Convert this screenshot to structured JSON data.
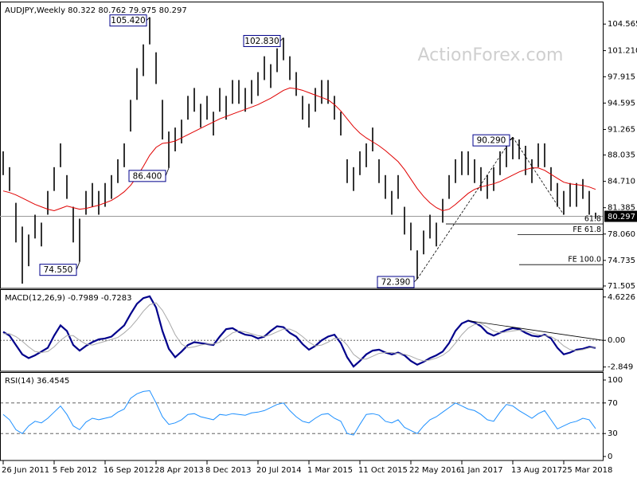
{
  "chart_data": [
    {
      "type": "ohlc",
      "title": "AUDJPY,Weekly  80.322 80.762 79.975 80.297",
      "watermark": "ActionForex.com",
      "color": "#000000",
      "categories": [
        "26 Jun 2011",
        null,
        null,
        null,
        null,
        null,
        null,
        null,
        "5 Feb 2012",
        null,
        null,
        null,
        null,
        null,
        null,
        null,
        "16 Sep 2012",
        null,
        null,
        null,
        null,
        null,
        null,
        null,
        "28 Apr 2013",
        null,
        null,
        null,
        null,
        null,
        null,
        null,
        "8 Dec 2013",
        null,
        null,
        null,
        null,
        null,
        null,
        null,
        "20 Jul 2014",
        null,
        null,
        null,
        null,
        null,
        null,
        null,
        "1 Mar 2015",
        null,
        null,
        null,
        null,
        null,
        null,
        null,
        "11 Oct 2015",
        null,
        null,
        null,
        null,
        null,
        null,
        null,
        "22 May 2016",
        null,
        null,
        null,
        null,
        null,
        null,
        null,
        "1 Jan 2017",
        null,
        null,
        null,
        null,
        null,
        null,
        null,
        "13 Aug 2017",
        null,
        null,
        null,
        null,
        null,
        null,
        null,
        "25 Mar 2018",
        null,
        null,
        null,
        null,
        null
      ],
      "high": [
        88.5,
        86.5,
        82,
        79,
        78,
        80.5,
        79.5,
        83.5,
        86.5,
        89.5,
        85.5,
        81.5,
        80,
        83.5,
        84.5,
        83.5,
        84.5,
        85.5,
        87.5,
        89.5,
        95,
        99,
        102,
        105.42,
        101,
        95,
        91,
        91.5,
        92.5,
        95.5,
        96.5,
        94.5,
        95.5,
        93.5,
        96.5,
        95.5,
        97.5,
        97.5,
        96.5,
        97.5,
        98.5,
        100.5,
        99.5,
        101.5,
        102.83,
        100.5,
        98.5,
        95.5,
        94.5,
        96.5,
        97.5,
        97.5,
        95.5,
        93.5,
        87.5,
        86.5,
        88.5,
        89.5,
        91.5,
        87.5,
        85.5,
        83.5,
        85.5,
        81.5,
        79.5,
        76,
        78.5,
        80.5,
        79.5,
        82.5,
        85.5,
        87.5,
        88.5,
        88.5,
        87.5,
        86.5,
        85.5,
        86.5,
        88.5,
        89.5,
        90.29,
        90,
        89.2,
        87.5,
        89.5,
        89.5,
        86.5,
        84.5,
        83.5,
        84.5,
        84.5,
        85,
        83.5,
        80.762
      ],
      "low": [
        85.5,
        83.5,
        77,
        71.8,
        74,
        77.5,
        76.5,
        80.5,
        83.5,
        86.5,
        82.5,
        77,
        74.55,
        80.5,
        81.5,
        80.5,
        81.5,
        82.5,
        84.5,
        86.5,
        91,
        95,
        98,
        102,
        97,
        90,
        86.4,
        88.5,
        89.5,
        92.5,
        93.5,
        91.5,
        92.5,
        90.5,
        93.5,
        92.5,
        94.5,
        94.5,
        93.5,
        94.5,
        95.5,
        97.5,
        96.5,
        98.5,
        100,
        97.5,
        95.5,
        92.5,
        91.5,
        93.5,
        94.5,
        94.5,
        92.5,
        90.5,
        84.5,
        83.5,
        85.5,
        86.5,
        88.5,
        84.5,
        82.5,
        80.5,
        82.5,
        78,
        76,
        72.39,
        75.5,
        77.5,
        76.5,
        79.5,
        82.5,
        84.5,
        85.5,
        85.5,
        84.5,
        83.5,
        82.5,
        83.5,
        85.5,
        86.5,
        87.5,
        87.5,
        85.5,
        84.5,
        86.5,
        86.5,
        83.5,
        81.5,
        80.5,
        81.5,
        81.5,
        82.5,
        80.5,
        79.975
      ],
      "ma": {
        "color": "#e00000",
        "values": [
          83.5,
          83.3,
          83,
          82.6,
          82.2,
          81.8,
          81.5,
          81.2,
          81,
          81.3,
          81.6,
          81.4,
          81.2,
          81.3,
          81.5,
          81.7,
          82,
          82.3,
          82.8,
          83.4,
          84.2,
          85.3,
          86.6,
          88,
          89,
          89.5,
          89.6,
          89.8,
          90.2,
          90.6,
          91,
          91.4,
          91.8,
          92.2,
          92.6,
          92.9,
          93.2,
          93.5,
          93.8,
          94.1,
          94.4,
          94.8,
          95.2,
          95.7,
          96.2,
          96.5,
          96.4,
          96.2,
          95.9,
          95.6,
          95.3,
          95,
          94.4,
          93.6,
          92.6,
          91.6,
          90.8,
          90.2,
          89.7,
          89.2,
          88.6,
          87.9,
          87.2,
          86.2,
          85,
          83.8,
          82.8,
          82,
          81.4,
          81,
          81.2,
          81.8,
          82.5,
          83.2,
          83.7,
          84,
          84.2,
          84.4,
          84.7,
          85.1,
          85.5,
          85.9,
          86.2,
          86.4,
          86.4,
          86.1,
          85.6,
          85.1,
          84.6,
          84.4,
          84.3,
          84.2,
          84,
          83.7
        ]
      },
      "last_price": 80.297,
      "annotations": [
        {
          "value": 105.42,
          "label": "105.420"
        },
        {
          "value": 102.83,
          "label": "102.830"
        },
        {
          "value": 86.4,
          "label": "86.400"
        },
        {
          "value": 74.55,
          "label": "74.550"
        },
        {
          "value": 72.39,
          "label": "72.390"
        },
        {
          "value": 90.29,
          "label": "90.290"
        }
      ],
      "levels": [
        {
          "value": 79.34,
          "label": "61.8"
        },
        {
          "value": 78.0,
          "label": "FE 61.8"
        },
        {
          "value": 74.2,
          "label": "FE 100.0"
        }
      ],
      "ylim": [
        71.2,
        107.1
      ],
      "yticks": [
        104.565,
        {
          "value": 101.21,
          "label": "101.210"
        },
        97.915,
        94.595,
        91.265,
        88.035,
        {
          "value": 84.71,
          "label": "84.710"
        },
        81.385,
        {
          "value": 78.06,
          "label": "78.060"
        },
        74.735,
        71.505
      ]
    },
    {
      "type": "line",
      "title": "MACD(12,26,9) -0.7989 -0.7283",
      "series": [
        {
          "color": "#00008b",
          "width": 2.2,
          "values": [
            0.9,
            0.5,
            -0.5,
            -1.5,
            -1.9,
            -1.6,
            -1.2,
            -0.8,
            0.5,
            1.6,
            1.0,
            -0.5,
            -1.1,
            -0.6,
            -0.2,
            0.1,
            0.2,
            0.4,
            1.0,
            1.6,
            2.8,
            3.9,
            4.5,
            4.7,
            3.5,
            1.0,
            -0.9,
            -1.8,
            -1.2,
            -0.5,
            -0.2,
            -0.3,
            -0.4,
            -0.5,
            0.4,
            1.2,
            1.3,
            0.9,
            0.6,
            0.5,
            0.2,
            0.4,
            1.0,
            1.5,
            1.4,
            0.8,
            0.4,
            -0.4,
            -1.0,
            -0.6,
            0.0,
            0.4,
            0.6,
            -0.3,
            -1.8,
            -2.8,
            -2.2,
            -1.5,
            -1.1,
            -1.0,
            -1.3,
            -1.5,
            -1.3,
            -1.6,
            -2.2,
            -2.6,
            -2.3,
            -1.9,
            -1.6,
            -1.2,
            -0.3,
            1.0,
            1.8,
            2.1,
            1.9,
            1.5,
            0.8,
            0.5,
            0.8,
            1.1,
            1.3,
            1.2,
            0.8,
            0.5,
            0.4,
            0.6,
            0.2,
            -0.8,
            -1.5,
            -1.3,
            -1.0,
            -0.9,
            -0.7,
            -0.7989
          ]
        },
        {
          "color": "#a9a9a9",
          "width": 1,
          "values": [
            0.7,
            0.7,
            0.4,
            -0.1,
            -0.7,
            -1.2,
            -1.3,
            -1.2,
            -0.7,
            0.0,
            0.5,
            0.5,
            0.0,
            -0.4,
            -0.5,
            -0.3,
            -0.1,
            0.1,
            0.3,
            0.8,
            1.4,
            2.2,
            3.1,
            3.8,
            4.0,
            3.2,
            2.0,
            0.6,
            -0.4,
            -0.8,
            -0.7,
            -0.5,
            -0.4,
            -0.4,
            -0.2,
            0.3,
            0.8,
            1.0,
            0.9,
            0.7,
            0.5,
            0.4,
            0.6,
            0.9,
            1.2,
            1.2,
            0.9,
            0.4,
            -0.2,
            -0.6,
            -0.5,
            -0.2,
            0.2,
            0.2,
            -0.5,
            -1.5,
            -2.0,
            -2.0,
            -1.7,
            -1.4,
            -1.3,
            -1.3,
            -1.4,
            -1.5,
            -1.7,
            -2.0,
            -2.2,
            -2.1,
            -1.9,
            -1.6,
            -1.1,
            -0.3,
            0.6,
            1.3,
            1.7,
            1.8,
            1.4,
            1.0,
            0.8,
            0.9,
            1.0,
            1.1,
            1.0,
            0.8,
            0.6,
            0.5,
            0.4,
            0.0,
            -0.6,
            -1.0,
            -1.1,
            -1.0,
            -0.8,
            -0.7283
          ]
        }
      ],
      "levels": [
        0
      ],
      "ylim": [
        -3.3,
        5.2
      ],
      "yticks": [
        4.6226,
        {
          "value": 0,
          "label": "0.00"
        },
        -2.849
      ]
    },
    {
      "type": "line",
      "title": "RSI(14) 36.4545",
      "series": [
        {
          "color": "#1e90ff",
          "width": 1,
          "values": [
            55,
            48,
            35,
            30,
            40,
            46,
            44,
            50,
            58,
            66,
            55,
            40,
            35,
            45,
            50,
            48,
            50,
            52,
            58,
            62,
            76,
            82,
            85,
            86,
            70,
            52,
            42,
            44,
            48,
            55,
            56,
            52,
            50,
            48,
            55,
            54,
            56,
            55,
            54,
            57,
            58,
            60,
            64,
            68,
            70,
            60,
            52,
            46,
            44,
            50,
            55,
            56,
            50,
            46,
            30,
            28,
            42,
            55,
            56,
            54,
            46,
            44,
            48,
            38,
            34,
            30,
            40,
            48,
            52,
            58,
            64,
            70,
            66,
            62,
            60,
            55,
            48,
            46,
            58,
            68,
            66,
            60,
            55,
            50,
            56,
            60,
            48,
            36,
            40,
            44,
            46,
            50,
            48,
            36.4545
          ]
        }
      ],
      "levels": [
        30,
        70
      ],
      "ylim": [
        -5.2,
        107.3
      ],
      "yticks": [
        100,
        70,
        30,
        0
      ]
    }
  ]
}
